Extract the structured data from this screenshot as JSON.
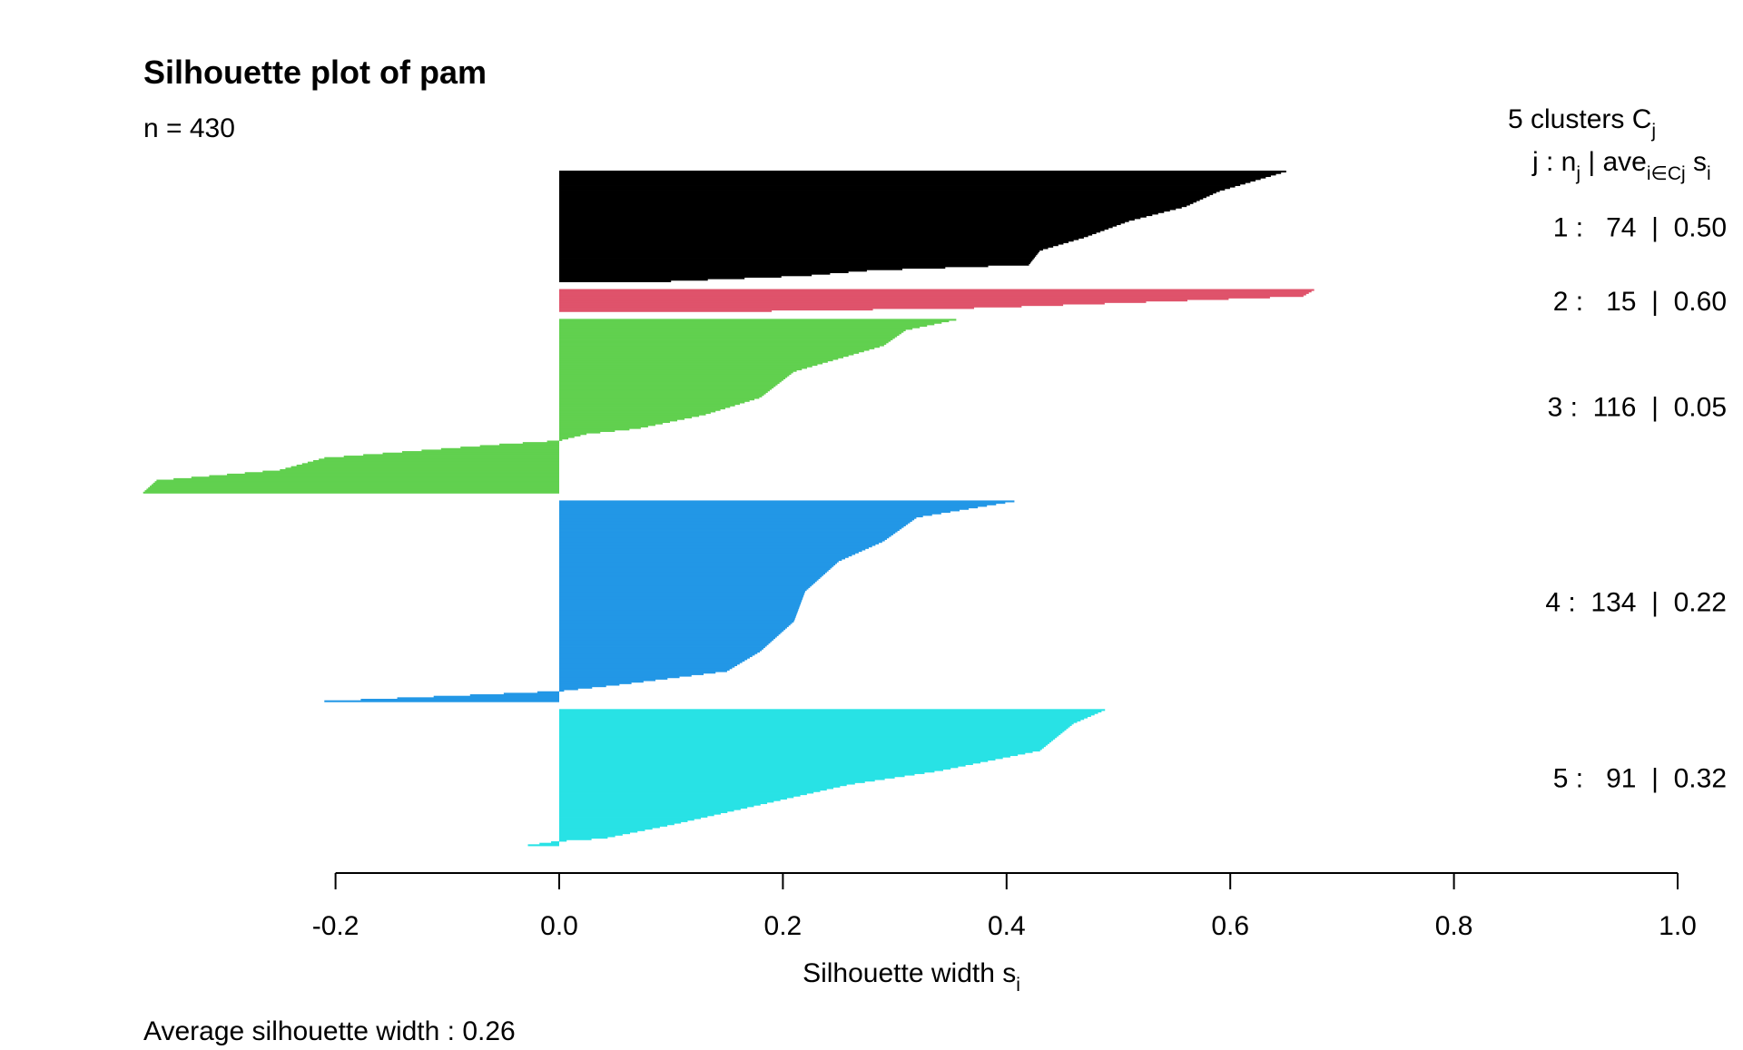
{
  "chart_data": {
    "type": "bar",
    "orientation": "horizontal",
    "title": "Silhouette plot of pam",
    "n_label": "n = 430",
    "xlabel": "Silhouette width s",
    "xlabel_sub": "i",
    "xlim": [
      -0.2,
      1.0
    ],
    "x_ticks": [
      -0.2,
      0.0,
      0.2,
      0.4,
      0.6,
      0.8,
      1.0
    ],
    "x_tick_labels": [
      "-0.2",
      "0.0",
      "0.2",
      "0.4",
      "0.6",
      "0.8",
      "1.0"
    ],
    "legend_header": {
      "line1": "5  clusters  C",
      "line1_sub": "j",
      "line2_j": "j :  n",
      "line2_j_sub": "j",
      "line2_ave": " | ave",
      "line2_ave_sub": "i∈Cj",
      "line2_s": "  s",
      "line2_s_sub": "i"
    },
    "average_label": "Average silhouette width :  0.26",
    "average_value": 0.26,
    "clusters": [
      {
        "label": "1 :   74  |  0.50",
        "id": 1,
        "n": 74,
        "ave": 0.5,
        "color": "#000000",
        "profile": [
          [
            0,
            0.65
          ],
          [
            0.18,
            0.59
          ],
          [
            0.32,
            0.56
          ],
          [
            0.45,
            0.51
          ],
          [
            0.6,
            0.47
          ],
          [
            0.72,
            0.43
          ],
          [
            0.85,
            0.42
          ],
          [
            0.9,
            0.28
          ],
          [
            0.95,
            0.22
          ],
          [
            1,
            0.1
          ]
        ]
      },
      {
        "label": "2 :   15  |  0.60",
        "id": 2,
        "n": 15,
        "ave": 0.6,
        "color": "#DF536B",
        "profile": [
          [
            0,
            0.675
          ],
          [
            0.3,
            0.665
          ],
          [
            0.6,
            0.51
          ],
          [
            0.85,
            0.38
          ],
          [
            1,
            0.19
          ]
        ]
      },
      {
        "label": "3 :  116  |  0.05",
        "id": 3,
        "n": 116,
        "ave": 0.05,
        "color": "#61D04F",
        "profile": [
          [
            0,
            0.355
          ],
          [
            0.06,
            0.31
          ],
          [
            0.15,
            0.29
          ],
          [
            0.3,
            0.21
          ],
          [
            0.45,
            0.18
          ],
          [
            0.55,
            0.13
          ],
          [
            0.63,
            0.07
          ],
          [
            0.66,
            0.025
          ],
          [
            0.7,
            0
          ],
          [
            0.72,
            -0.05
          ],
          [
            0.8,
            -0.21
          ],
          [
            0.87,
            -0.25
          ],
          [
            0.93,
            -0.36
          ],
          [
            1,
            -0.372
          ]
        ]
      },
      {
        "label": "4 :  134  |  0.22",
        "id": 4,
        "n": 134,
        "ave": 0.22,
        "color": "#2297E6",
        "profile": [
          [
            0,
            0.407
          ],
          [
            0.08,
            0.32
          ],
          [
            0.2,
            0.29
          ],
          [
            0.3,
            0.25
          ],
          [
            0.45,
            0.22
          ],
          [
            0.6,
            0.21
          ],
          [
            0.75,
            0.18
          ],
          [
            0.85,
            0.15
          ],
          [
            0.92,
            0.05
          ],
          [
            0.95,
            0
          ],
          [
            0.97,
            -0.08
          ],
          [
            1,
            -0.21
          ]
        ]
      },
      {
        "label": "5 :   91  |  0.32",
        "id": 5,
        "n": 91,
        "ave": 0.32,
        "color": "#28E2E5",
        "profile": [
          [
            0,
            0.488
          ],
          [
            0.1,
            0.46
          ],
          [
            0.3,
            0.43
          ],
          [
            0.45,
            0.34
          ],
          [
            0.55,
            0.26
          ],
          [
            0.7,
            0.18
          ],
          [
            0.85,
            0.1
          ],
          [
            0.95,
            0.04
          ],
          [
            0.97,
            0
          ],
          [
            1,
            -0.028
          ]
        ]
      }
    ]
  }
}
